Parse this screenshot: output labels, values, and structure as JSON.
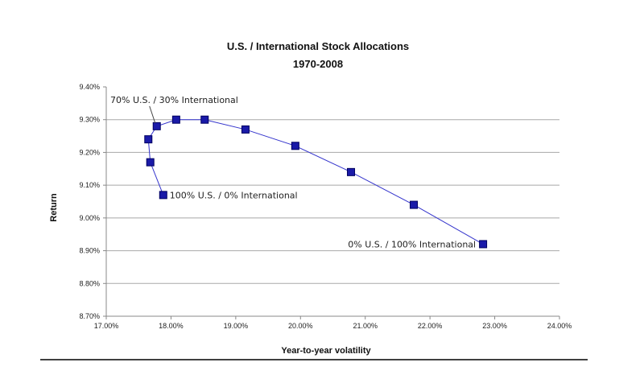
{
  "chart_data": {
    "type": "scatter",
    "title": "U.S. / International Stock Allocations",
    "subtitle": "1970-2008",
    "xlabel": "Year-to-year volatility",
    "ylabel": "Return",
    "xlim": [
      17.0,
      24.0
    ],
    "ylim": [
      8.7,
      9.4
    ],
    "x_ticks": [
      "17.00%",
      "18.00%",
      "19.00%",
      "20.00%",
      "21.00%",
      "22.00%",
      "23.00%",
      "24.00%"
    ],
    "y_ticks": [
      "9.40%",
      "9.30%",
      "9.20%",
      "9.10%",
      "9.00%",
      "8.90%",
      "8.80%",
      "8.70%"
    ],
    "x_tick_values": [
      17,
      18,
      19,
      20,
      21,
      22,
      23,
      24
    ],
    "y_tick_values": [
      9.4,
      9.3,
      9.2,
      9.1,
      9.0,
      8.9,
      8.8,
      8.7
    ],
    "grid": "horizontal",
    "series": [
      {
        "color": "#3333cc",
        "marker": "square",
        "points": [
          {
            "x": 17.88,
            "y": 9.07
          },
          {
            "x": 17.68,
            "y": 9.17
          },
          {
            "x": 17.65,
            "y": 9.24
          },
          {
            "x": 17.78,
            "y": 9.28
          },
          {
            "x": 18.08,
            "y": 9.3
          },
          {
            "x": 18.52,
            "y": 9.3
          },
          {
            "x": 19.15,
            "y": 9.27
          },
          {
            "x": 19.92,
            "y": 9.22
          },
          {
            "x": 20.78,
            "y": 9.14
          },
          {
            "x": 21.75,
            "y": 9.04
          },
          {
            "x": 22.82,
            "y": 8.92
          }
        ]
      }
    ],
    "annotations": [
      {
        "text": "70% U.S. / 30% International",
        "x": 17.78,
        "y": 9.28
      },
      {
        "text": "100% U.S. / 0% International",
        "x": 17.88,
        "y": 9.07
      },
      {
        "text": "0% U.S. / 100% International",
        "x": 22.82,
        "y": 8.92
      }
    ]
  }
}
